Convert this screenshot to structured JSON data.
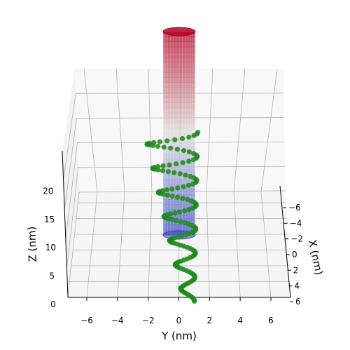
{
  "chart_data": {
    "type": "scatter",
    "title": "",
    "projection": "3d",
    "xlabel": "X (nm)",
    "ylabel": "Y (nm)",
    "zlabel": "Z (nm)",
    "xlim": [
      -7,
      7
    ],
    "ylim": [
      -7,
      7
    ],
    "zlim": [
      0,
      25
    ],
    "xticks": [
      "−6",
      "−4",
      "−2",
      "0",
      "2",
      "4",
      "6"
    ],
    "yticks": [
      "−6",
      "−4",
      "−2",
      "0",
      "2",
      "4",
      "6"
    ],
    "zticks": [
      "0",
      "5",
      "10",
      "15",
      "20"
    ],
    "grid": true,
    "cylinder": {
      "center": [
        0,
        0
      ],
      "radius": 1,
      "z_range": [
        0,
        25
      ],
      "colormap": "coolwarm",
      "colors": {
        "low": "#3b4cc0",
        "mid": "#dddddd",
        "high": "#b40426"
      }
    },
    "series": [
      {
        "marker_color": "#1a8a1a",
        "line_color": "#f2b8a4",
        "helix": {
          "turns": 7,
          "z_start": 1,
          "z_end": 24,
          "points": 154,
          "center_x": [
            1.2,
            -1.0
          ],
          "radius": [
            0.6,
            3.0
          ]
        }
      }
    ]
  }
}
